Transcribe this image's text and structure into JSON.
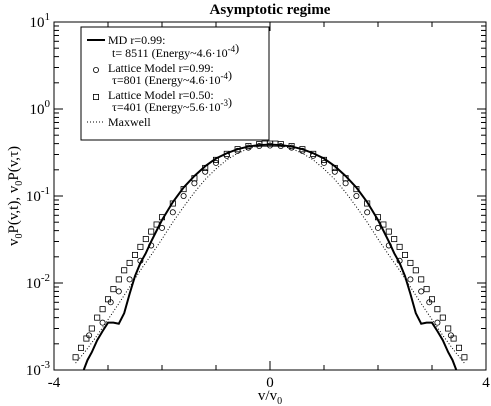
{
  "chart_data": {
    "type": "line",
    "title": "Asymptotic regime",
    "xlabel_main": "v/v",
    "xlabel_sub": "0",
    "ylabel_parts": [
      {
        "text": "v",
        "sub": false
      },
      {
        "text": "0",
        "sub": true
      },
      {
        "text": "P(v,t), v",
        "sub": false
      },
      {
        "text": "0",
        "sub": true
      },
      {
        "text": "P(v,τ)",
        "sub": false
      }
    ],
    "x_range": [
      -4,
      4
    ],
    "y_range": [
      0.001,
      10
    ],
    "y_scale": "log",
    "x_ticks": [
      {
        "value": -4,
        "label": "-4"
      },
      {
        "value": 0,
        "label": "0"
      },
      {
        "value": 4,
        "label": "4"
      }
    ],
    "y_ticks": [
      {
        "value": 10,
        "base": "10",
        "exp": "1"
      },
      {
        "value": 1,
        "base": "10",
        "exp": "0"
      },
      {
        "value": 0.1,
        "base": "10",
        "exp": "-1"
      },
      {
        "value": 0.01,
        "base": "10",
        "exp": "-2"
      },
      {
        "value": 0.001,
        "base": "10",
        "exp": "-3"
      }
    ],
    "legend_position": "top-left",
    "legend": [
      {
        "marker": "solid-line",
        "lines": [
          [
            {
              "t": "MD r=0.99:"
            }
          ],
          [
            {
              "t": "t= 8511 (Energy~4.6·10"
            },
            {
              "t": "-4",
              "sup": true
            },
            {
              "t": ")"
            }
          ]
        ]
      },
      {
        "marker": "circle",
        "lines": [
          [
            {
              "t": "Lattice Model r=0.99:"
            }
          ],
          [
            {
              "t": "τ=801 (Energy~4.6·10"
            },
            {
              "t": "-4",
              "sup": true
            },
            {
              "t": ")"
            }
          ]
        ]
      },
      {
        "marker": "square",
        "lines": [
          [
            {
              "t": "Lattice Model r=0.50:"
            }
          ],
          [
            {
              "t": "τ=401 (Energy~5.6·10"
            },
            {
              "t": "-3",
              "sup": true
            },
            {
              "t": ")"
            }
          ]
        ]
      },
      {
        "marker": "dotted-line",
        "lines": [
          [
            {
              "t": "Maxwell"
            }
          ]
        ]
      }
    ],
    "series": [
      {
        "style": "solid",
        "x": [
          -3.45,
          -3.38,
          -3.3,
          -3.2,
          -3.1,
          -3.0,
          -2.9,
          -2.8,
          -2.7,
          -2.6,
          -2.5,
          -2.4,
          -2.3,
          -2.2,
          -2.1,
          -2.0,
          -1.8,
          -1.6,
          -1.4,
          -1.2,
          -1.0,
          -0.8,
          -0.6,
          -0.4,
          -0.2,
          0.0,
          0.2,
          0.4,
          0.6,
          0.8,
          1.0,
          1.2,
          1.4,
          1.6,
          1.8,
          2.0,
          2.1,
          2.2,
          2.3,
          2.4,
          2.5,
          2.6,
          2.7,
          2.8,
          2.9,
          3.0,
          3.1,
          3.2,
          3.3,
          3.38,
          3.45
        ],
        "y": [
          0.001,
          0.0013,
          0.0016,
          0.0022,
          0.0028,
          0.0035,
          0.0035,
          0.0034,
          0.0045,
          0.0075,
          0.012,
          0.017,
          0.022,
          0.03,
          0.04,
          0.053,
          0.085,
          0.125,
          0.17,
          0.22,
          0.27,
          0.31,
          0.345,
          0.37,
          0.385,
          0.39,
          0.385,
          0.37,
          0.345,
          0.31,
          0.27,
          0.22,
          0.17,
          0.125,
          0.085,
          0.053,
          0.04,
          0.03,
          0.022,
          0.017,
          0.012,
          0.0075,
          0.0045,
          0.0034,
          0.0035,
          0.0035,
          0.0028,
          0.0022,
          0.0016,
          0.0013,
          0.001
        ]
      },
      {
        "style": "circle",
        "x": [
          -3.35,
          -3.1,
          -2.95,
          -2.8,
          -2.6,
          -2.4,
          -2.2,
          -2.0,
          -1.8,
          -1.6,
          -1.4,
          -1.2,
          -1.0,
          -0.8,
          -0.6,
          -0.4,
          -0.2,
          0.0,
          0.2,
          0.4,
          0.6,
          0.8,
          1.0,
          1.2,
          1.4,
          1.6,
          1.8,
          2.0,
          2.2,
          2.4,
          2.6,
          2.8,
          2.95,
          3.1,
          3.35
        ],
        "y": [
          0.0025,
          0.0035,
          0.006,
          0.008,
          0.011,
          0.018,
          0.027,
          0.043,
          0.065,
          0.1,
          0.14,
          0.19,
          0.24,
          0.29,
          0.33,
          0.36,
          0.375,
          0.38,
          0.375,
          0.36,
          0.33,
          0.29,
          0.24,
          0.19,
          0.14,
          0.1,
          0.065,
          0.043,
          0.027,
          0.018,
          0.011,
          0.008,
          0.006,
          0.0035,
          0.0025
        ]
      },
      {
        "style": "square",
        "x": [
          -3.6,
          -3.5,
          -3.4,
          -3.3,
          -3.2,
          -3.1,
          -3.0,
          -2.9,
          -2.8,
          -2.7,
          -2.6,
          -2.5,
          -2.4,
          -2.3,
          -2.2,
          -2.1,
          -2.0,
          -1.8,
          -1.6,
          -1.4,
          -1.2,
          -1.0,
          -0.8,
          -0.6,
          -0.4,
          -0.2,
          -0.1,
          0.0,
          0.1,
          0.2,
          0.4,
          0.6,
          0.8,
          1.0,
          1.2,
          1.4,
          1.6,
          1.8,
          2.0,
          2.1,
          2.2,
          2.3,
          2.4,
          2.5,
          2.6,
          2.7,
          2.8,
          2.9,
          3.0,
          3.1,
          3.2,
          3.3,
          3.4,
          3.5,
          3.6
        ],
        "y": [
          0.0014,
          0.0018,
          0.0023,
          0.003,
          0.004,
          0.005,
          0.0065,
          0.0085,
          0.011,
          0.014,
          0.017,
          0.021,
          0.026,
          0.032,
          0.039,
          0.047,
          0.057,
          0.082,
          0.12,
          0.16,
          0.21,
          0.26,
          0.305,
          0.345,
          0.375,
          0.395,
          0.4,
          0.4,
          0.4,
          0.395,
          0.375,
          0.345,
          0.305,
          0.26,
          0.21,
          0.16,
          0.12,
          0.082,
          0.057,
          0.047,
          0.039,
          0.032,
          0.026,
          0.021,
          0.017,
          0.014,
          0.011,
          0.0085,
          0.0065,
          0.005,
          0.004,
          0.003,
          0.0023,
          0.0018,
          0.0014
        ]
      },
      {
        "style": "dotted",
        "x": [
          -3.6,
          -3.4,
          -3.2,
          -3.0,
          -2.8,
          -2.6,
          -2.4,
          -2.2,
          -2.0,
          -1.8,
          -1.6,
          -1.4,
          -1.2,
          -1.0,
          -0.8,
          -0.6,
          -0.4,
          -0.2,
          0.0,
          0.2,
          0.4,
          0.6,
          0.8,
          1.0,
          1.2,
          1.4,
          1.6,
          1.8,
          2.0,
          2.2,
          2.4,
          2.6,
          2.8,
          3.0,
          3.2,
          3.4,
          3.6
        ],
        "y": [
          0.0012,
          0.0017,
          0.0025,
          0.0038,
          0.0058,
          0.009,
          0.014,
          0.021,
          0.032,
          0.05,
          0.075,
          0.11,
          0.155,
          0.205,
          0.26,
          0.31,
          0.35,
          0.38,
          0.39,
          0.38,
          0.35,
          0.31,
          0.26,
          0.205,
          0.155,
          0.11,
          0.075,
          0.05,
          0.032,
          0.021,
          0.014,
          0.009,
          0.0058,
          0.0038,
          0.0025,
          0.0017,
          0.0012
        ]
      }
    ]
  }
}
